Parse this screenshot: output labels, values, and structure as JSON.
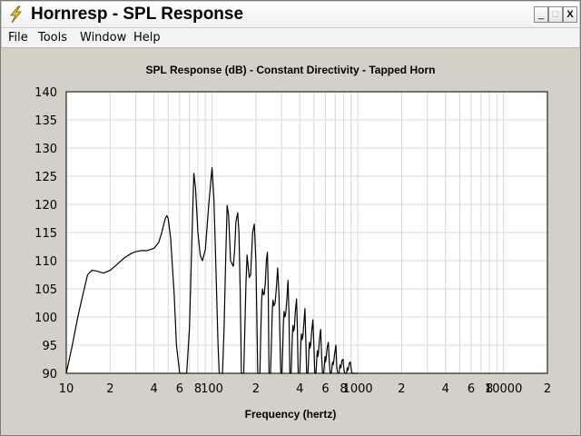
{
  "window": {
    "title": "Hornresp - SPL Response",
    "controls": {
      "minimize": "_",
      "maximize": "□",
      "close": "X"
    }
  },
  "menu": [
    {
      "label": "File"
    },
    {
      "label": "Tools"
    },
    {
      "label": "Window"
    },
    {
      "label": "Help"
    }
  ],
  "colors": {
    "background": "#d4d0c8",
    "plot_background": "#ffffff",
    "grid": "#d8d8d8",
    "curve": "#000000"
  },
  "chart_data": {
    "type": "line",
    "title": "SPL Response (dB) - Constant Directivity - Tapped Horn",
    "xlabel": "Frequency (hertz)",
    "ylabel": "",
    "x_scale": "log",
    "xlim": [
      10,
      20000
    ],
    "ylim": [
      90,
      140
    ],
    "grid": true,
    "xticks": [
      {
        "value": 10,
        "label": "10"
      },
      {
        "value": 20,
        "label": "2"
      },
      {
        "value": 40,
        "label": "4"
      },
      {
        "value": 60,
        "label": "6"
      },
      {
        "value": 80,
        "label": "8"
      },
      {
        "value": 100,
        "label": "100"
      },
      {
        "value": 200,
        "label": "2"
      },
      {
        "value": 400,
        "label": "4"
      },
      {
        "value": 600,
        "label": "6"
      },
      {
        "value": 800,
        "label": "8"
      },
      {
        "value": 1000,
        "label": "1000"
      },
      {
        "value": 2000,
        "label": "2"
      },
      {
        "value": 4000,
        "label": "4"
      },
      {
        "value": 6000,
        "label": "6"
      },
      {
        "value": 8000,
        "label": "8"
      },
      {
        "value": 10000,
        "label": "10000"
      },
      {
        "value": 20000,
        "label": "2"
      }
    ],
    "yticks": [
      90,
      95,
      100,
      105,
      110,
      115,
      120,
      125,
      130,
      135,
      140
    ],
    "series": [
      {
        "x": [
          10,
          11,
          12,
          13,
          14,
          15,
          16,
          18,
          20,
          22,
          25,
          28,
          30,
          33,
          36,
          40,
          43,
          45,
          47,
          48,
          49,
          50,
          52,
          55,
          57,
          60,
          62,
          67,
          70,
          73,
          75,
          77,
          80,
          83,
          86,
          90,
          95,
          100,
          103,
          106,
          110,
          112,
          114,
          118,
          121,
          124,
          127,
          130,
          134,
          140,
          143,
          146,
          150,
          153,
          156,
          159,
          165,
          168,
          171,
          174,
          177,
          180,
          184,
          190,
          195,
          200,
          203,
          206,
          213,
          216,
          219,
          222,
          225,
          228,
          232,
          236,
          240,
          243,
          246,
          252,
          256,
          259,
          262,
          266,
          271,
          276,
          282,
          288,
          292,
          296,
          302,
          306,
          309,
          312,
          316,
          320,
          326,
          332,
          337,
          342,
          349,
          353,
          356,
          359,
          363,
          367,
          373,
          380,
          385,
          390,
          400,
          404,
          407,
          411,
          415,
          420,
          427,
          434,
          440,
          446,
          455,
          459,
          462,
          466,
          470,
          475,
          483,
          492,
          500,
          507,
          516,
          521,
          524,
          528,
          532,
          537,
          546,
          556,
          565,
          573,
          583,
          588,
          592,
          596,
          600,
          606,
          616,
          628,
          638,
          647,
          658,
          663,
          667,
          672,
          677,
          683,
          694,
          708,
          718,
          728,
          740,
          746,
          750,
          755,
          760,
          767,
          778,
          792,
          805,
          816,
          830,
          837,
          842,
          847,
          853,
          860,
          874,
          890,
          905,
          915,
          940,
          1000
        ],
        "y": [
          90,
          95,
          100,
          104,
          107.5,
          108.3,
          108.2,
          107.8,
          108.3,
          109.2,
          110.5,
          111.3,
          111.6,
          111.8,
          111.8,
          112.2,
          113.2,
          114.8,
          116.8,
          117.6,
          118,
          117.5,
          114,
          104,
          95,
          90,
          90,
          90,
          98,
          115,
          125.5,
          123,
          115,
          111,
          110,
          112,
          120,
          126.5,
          121,
          110,
          95,
          90,
          90,
          90,
          98,
          110,
          119.8,
          118,
          110,
          109,
          112,
          117,
          118.5,
          115,
          105,
          90,
          90,
          98,
          106,
          111,
          109,
          107,
          107.5,
          115,
          116.5,
          110,
          100,
          90,
          90,
          97,
          103,
          105,
          104,
          104,
          106,
          110,
          111.5,
          105,
          90,
          90,
          96,
          101,
          103,
          102,
          102.5,
          105,
          108.7,
          104,
          97,
          90,
          90,
          95,
          99,
          101,
          100,
          100.5,
          103,
          106.5,
          101,
          90,
          90,
          94,
          97,
          98.5,
          97.5,
          98,
          101,
          103.2,
          98,
          90,
          90,
          93,
          95.5,
          97,
          96,
          96.5,
          99,
          101.5,
          96,
          90,
          90,
          92,
          94,
          95.5,
          94.5,
          95,
          97.5,
          99.5,
          95,
          90,
          90,
          91.5,
          93,
          94,
          93,
          93.5,
          96,
          97.8,
          93,
          90,
          90,
          91,
          92,
          93,
          92,
          92.5,
          94.5,
          95.5,
          92,
          90,
          90,
          90.5,
          91.5,
          92,
          91.5,
          92,
          93.5,
          95,
          91,
          90,
          90,
          90.2,
          91,
          91.5,
          91,
          91,
          92.3,
          92.5,
          90.5,
          90,
          90,
          90,
          90.5,
          91,
          90.5,
          90.7,
          91.8,
          92,
          90.5,
          90,
          90,
          90
        ]
      }
    ]
  }
}
